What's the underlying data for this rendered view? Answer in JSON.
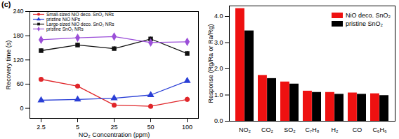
{
  "chart_data": [
    {
      "type": "line",
      "annotations": [
        "(c)"
      ],
      "x_label": "NO₂ Concentration (ppm)",
      "y_label": "Recovery time (s)",
      "categories": [
        "2.5",
        "5",
        "25",
        "50",
        "100"
      ],
      "ylim": [
        -25,
        240
      ],
      "yticks": [
        0,
        60,
        120,
        180,
        240
      ],
      "legend": "top-left",
      "series": [
        {
          "name": "Small-sized NiO deco. SnO₂ NRs",
          "color": "#e0262a",
          "marker": "circle",
          "values": [
            72,
            55,
            8,
            5,
            22
          ],
          "errors": [
            5,
            5,
            5,
            5,
            6
          ]
        },
        {
          "name": "pristine NiO NPs",
          "color": "#2a3fd6",
          "marker": "triangle",
          "values": [
            20,
            22,
            25,
            33,
            68
          ],
          "errors": [
            5,
            5,
            5,
            5,
            5
          ]
        },
        {
          "name": "Large-sized NiO deco. SnO₂ NRs",
          "color": "#111111",
          "marker": "square",
          "values": [
            143,
            157,
            148,
            172,
            136
          ],
          "errors": [
            5,
            5,
            5,
            5,
            5
          ]
        },
        {
          "name": "pristine SnO₂ NRs",
          "color": "#9b4fd8",
          "marker": "diamond",
          "values": [
            170,
            175,
            178,
            163,
            165
          ],
          "errors": [
            5,
            5,
            5,
            5,
            5
          ]
        }
      ]
    },
    {
      "type": "bar",
      "y_label": "Response (Rg/Ra or Ra/Rg)",
      "categories": [
        "NO₂",
        "CO₂",
        "SO₂",
        "C₇H₈",
        "H₂",
        "CO",
        "C₆H₆"
      ],
      "ylim": [
        0,
        4.4
      ],
      "yticks": [
        {
          "value": 0,
          "label": "0.0"
        },
        {
          "value": 1,
          "label": "1.0"
        },
        {
          "value": 2,
          "label": "2.0"
        },
        {
          "value": 3,
          "label": "3.0"
        },
        {
          "value": 4,
          "label": "4.0"
        }
      ],
      "legend": "top-right",
      "series": [
        {
          "name": "NiO deco. SnO₂",
          "color": "#ee1111",
          "values": [
            4.3,
            1.75,
            1.5,
            1.15,
            1.1,
            1.08,
            1.05
          ]
        },
        {
          "name": "pristine SnO₂",
          "color": "#000000",
          "values": [
            3.45,
            1.63,
            1.42,
            1.1,
            1.03,
            1.03,
            0.98
          ]
        }
      ]
    }
  ]
}
